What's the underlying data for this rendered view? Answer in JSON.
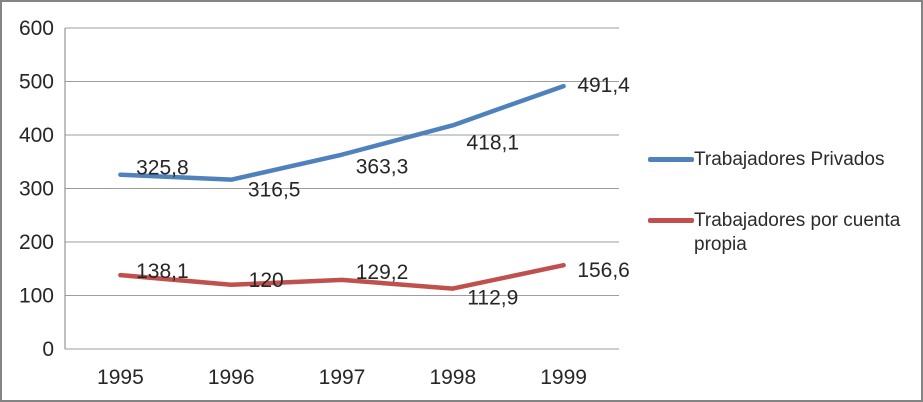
{
  "chart_data": {
    "type": "line",
    "categories": [
      "1995",
      "1996",
      "1997",
      "1998",
      "1999"
    ],
    "series": [
      {
        "name": "Trabajadores Privados",
        "color": "#4F81BD",
        "values": [
          325.8,
          316.5,
          363.3,
          418.1,
          491.4
        ],
        "labels": [
          "325,8",
          "316,5",
          "363,3",
          "418,1",
          "491,4"
        ],
        "label_offsets": [
          [
            42,
            0
          ],
          [
            43,
            17
          ],
          [
            40,
            19
          ],
          [
            40,
            24
          ],
          [
            40,
            6
          ]
        ]
      },
      {
        "name": "Trabajadores por cuenta propia",
        "color": "#C0504D",
        "values": [
          138.1,
          120,
          129.2,
          112.9,
          156.6
        ],
        "labels": [
          "138,1",
          "120",
          "129,2",
          "112,9",
          "156,6"
        ],
        "label_offsets": [
          [
            42,
            3
          ],
          [
            35,
            2
          ],
          [
            40,
            -1
          ],
          [
            40,
            16
          ],
          [
            40,
            12
          ]
        ]
      }
    ],
    "title": "",
    "xlabel": "",
    "ylabel": "",
    "ylim": [
      0,
      600
    ],
    "yticks": [
      0,
      100,
      200,
      300,
      400,
      500,
      600
    ],
    "ytick_labels": [
      "0",
      "100",
      "200",
      "300",
      "400",
      "500",
      "600"
    ],
    "grid": true,
    "legend_position": "right",
    "decimal_separator": ",",
    "colors": {
      "gridline": "#9d9d9d",
      "axis": "#808080",
      "text": "#262626",
      "frame_border": "#848484",
      "background": "#ffffff"
    }
  }
}
